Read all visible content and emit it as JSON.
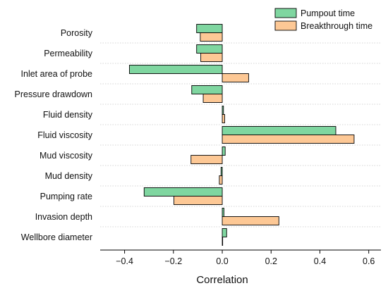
{
  "chart_data": {
    "type": "bar",
    "orientation": "horizontal",
    "categories": [
      "Porosity",
      "Permeability",
      "Inlet area of probe",
      "Pressure drawdown",
      "Fluid density",
      "Fluid viscosity",
      "Mud viscosity",
      "Mud density",
      "Pumping rate",
      "Invasion depth",
      "Wellbore diameter"
    ],
    "series": [
      {
        "name": "Pumpout time",
        "color": "#7fd6a0",
        "values": [
          -0.105,
          -0.105,
          -0.38,
          -0.125,
          0.005,
          0.465,
          0.012,
          -0.005,
          -0.32,
          0.007,
          0.018
        ]
      },
      {
        "name": "Breakthrough time",
        "color": "#fdc895",
        "values": [
          -0.09,
          -0.088,
          0.108,
          -0.078,
          0.01,
          0.54,
          -0.128,
          -0.012,
          -0.198,
          0.232,
          0.0
        ]
      }
    ],
    "title": "",
    "xlabel": "Correlation",
    "ylabel": "",
    "xlim": [
      -0.5,
      0.65
    ],
    "xticks": [
      "−0.4",
      "−0.2",
      "0.0",
      "0.2",
      "0.4",
      "0.6"
    ],
    "xtick_values": [
      -0.4,
      -0.2,
      0.0,
      0.2,
      0.4,
      0.6
    ],
    "grid": "horizontal dotted separators",
    "legend": "top-right"
  }
}
